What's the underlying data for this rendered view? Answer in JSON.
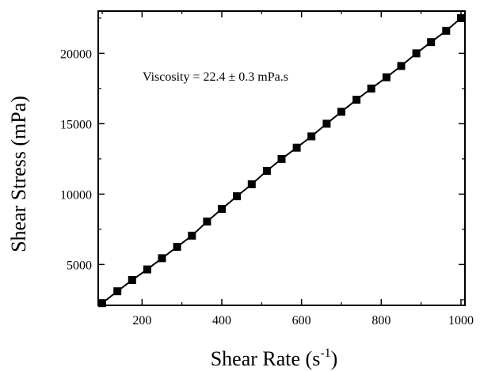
{
  "chart_data": {
    "type": "line",
    "title": "",
    "xlabel": "Shear Rate (s",
    "xlabel_sup": "-1",
    "xlabel_close": ")",
    "ylabel": "Shear Stress (mPa)",
    "annotation": "Viscosity = 22.4 ± 0.3 mPa.s",
    "xlim": [
      90,
      1010
    ],
    "ylim": [
      2100,
      23000
    ],
    "xticks": [
      200,
      400,
      600,
      800,
      1000
    ],
    "yticks": [
      5000,
      10000,
      15000,
      20000
    ],
    "xtick_labels": [
      "200",
      "400",
      "600",
      "800",
      "1000"
    ],
    "ytick_labels": [
      "5000",
      "10000",
      "15000",
      "20000"
    ],
    "grid": false,
    "marker": "square",
    "series": [
      {
        "color": "#000000",
        "x": [
          100,
          138,
          175,
          213,
          250,
          288,
          325,
          363,
          400,
          438,
          475,
          513,
          550,
          588,
          625,
          663,
          700,
          738,
          775,
          813,
          850,
          888,
          925,
          963,
          1000
        ],
        "y": [
          2260,
          3100,
          3900,
          4650,
          5450,
          6250,
          7050,
          8050,
          8950,
          9850,
          10700,
          11650,
          12500,
          13300,
          14100,
          15000,
          15850,
          16700,
          17500,
          18300,
          19100,
          20000,
          20800,
          21600,
          22500
        ]
      }
    ]
  }
}
